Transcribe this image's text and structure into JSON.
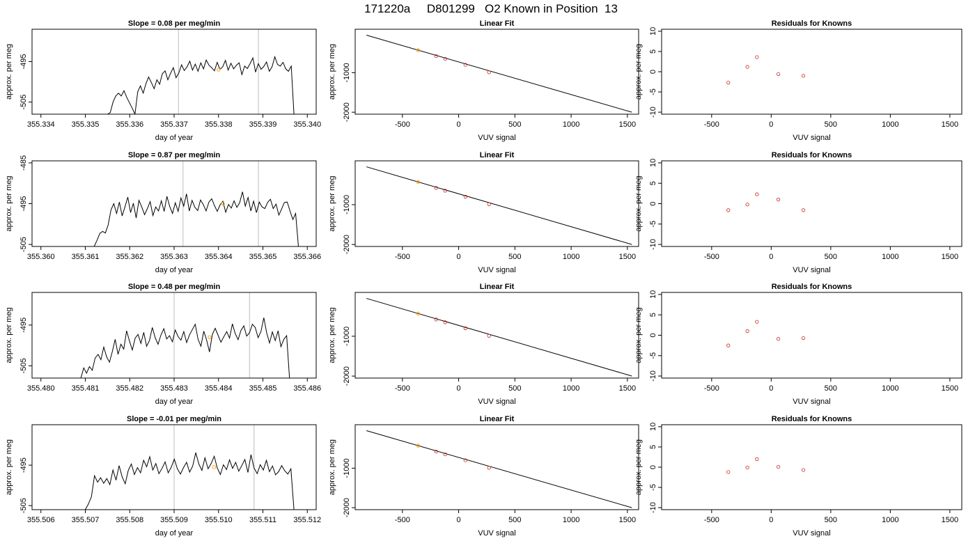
{
  "figure": {
    "title": "171220a     D801299   O2 Known in Position  13"
  },
  "colors": {
    "trace": "#000000",
    "vertical_markers": "#c8c8c8",
    "known_points": "#cc2020",
    "highlight_point": "#ff9900"
  },
  "chart_data": [
    {
      "type": "line",
      "title": "Slope =  0.08  per meg/min",
      "xlabel": "day of year",
      "ylabel": "approx. per meg",
      "xlim": [
        355.3338,
        355.3402
      ],
      "ylim": [
        -508,
        -487
      ],
      "xticks": [
        "355.334",
        "355.335",
        "355.336",
        "355.337",
        "355.338",
        "355.339",
        "355.340"
      ],
      "xtick_values": [
        355.334,
        355.335,
        355.336,
        355.337,
        355.338,
        355.339,
        355.34
      ],
      "yticks": [
        "-505",
        "-495"
      ],
      "ytick_values": [
        -505,
        -495
      ],
      "vlines": [
        355.3371,
        355.3389
      ],
      "highlight": {
        "x": 355.338,
        "y": -497
      },
      "trace": {
        "x_start": 355.3355,
        "x_end": 355.3397,
        "baseline": -496,
        "amplitude": 2.2,
        "rise": [
          -508,
          -502
        ],
        "fall": -508,
        "y": [
          -508,
          -507.6,
          -505,
          -503.5,
          -502.8,
          -503.5,
          -502.2,
          -503.8,
          -505.2,
          -506.5,
          -508,
          -502.5,
          -501,
          -502.8,
          -500.5,
          -498.8,
          -500.2,
          -501.7,
          -499.5,
          -500.6,
          -498,
          -497.3,
          -499.5,
          -497.9,
          -496.5,
          -499,
          -497.8,
          -495.8,
          -497.2,
          -496.3,
          -494.9,
          -497.1,
          -495.6,
          -497.4,
          -495.3,
          -496.8,
          -494.6,
          -495.9,
          -496.5,
          -497.3,
          -495.2,
          -496.9,
          -496.3,
          -494.7,
          -497.1,
          -495.4,
          -496.8,
          -495.9,
          -495.3,
          -498.2,
          -496.1,
          -496.7,
          -495.5,
          -494.1,
          -497.6,
          -495.5,
          -496.9,
          -496.2,
          -495.1,
          -497.4,
          -496.3,
          -493.8,
          -495.7,
          -496.1,
          -495.2,
          -496.8,
          -497.4,
          -496.1,
          -508
        ]
      }
    },
    {
      "type": "line",
      "title": "Linear Fit",
      "xlabel": "VUV signal",
      "ylabel": "approx. per meg",
      "xlim": [
        -920,
        1600
      ],
      "ylim": [
        -2050,
        100
      ],
      "xticks": [
        "-500",
        "0",
        "500",
        "1000",
        "1500"
      ],
      "xtick_values": [
        -500,
        0,
        500,
        1000,
        1500
      ],
      "yticks": [
        "-1000",
        "-2000"
      ],
      "ytick_values": [
        -1000,
        -2000
      ],
      "fit_line": {
        "x": [
          -820,
          1540
        ],
        "y": [
          -50,
          -2000
        ]
      },
      "points": {
        "x": [
          -360,
          -200,
          -120,
          60,
          270
        ],
        "y": [
          -430,
          -580,
          -650,
          -800,
          -990
        ]
      },
      "highlight_point_index": 0
    },
    {
      "type": "scatter",
      "title": "Residuals for Knowns",
      "xlabel": "VUV signal",
      "ylabel": "approx. per meg",
      "xlim": [
        -920,
        1600
      ],
      "ylim": [
        -10.5,
        10.5
      ],
      "xticks": [
        "-500",
        "0",
        "500",
        "1000",
        "1500"
      ],
      "xtick_values": [
        -500,
        0,
        500,
        1000,
        1500
      ],
      "yticks": [
        "-10",
        "-5",
        "0",
        "5",
        "10"
      ],
      "ytick_values": [
        -10,
        -5,
        0,
        5,
        10
      ],
      "points": {
        "x": [
          -360,
          -200,
          -120,
          60,
          270
        ],
        "y": [
          -2.7,
          1.2,
          3.6,
          -0.6,
          -1.0
        ]
      }
    },
    {
      "type": "line",
      "title": "Slope =  0.87  per meg/min",
      "xlabel": "day of year",
      "ylabel": "approx. per meg",
      "xlim": [
        355.3598,
        355.3662
      ],
      "ylim": [
        -505.5,
        -484.5
      ],
      "xticks": [
        "355.360",
        "355.361",
        "355.362",
        "355.363",
        "355.364",
        "355.365",
        "355.366"
      ],
      "xtick_values": [
        355.36,
        355.361,
        355.362,
        355.363,
        355.364,
        355.365,
        355.366
      ],
      "yticks": [
        "-505",
        "-495",
        "-485"
      ],
      "ytick_values": [
        -505,
        -495,
        -485
      ],
      "vlines": [
        355.3632,
        355.3649
      ],
      "highlight": {
        "x": 355.3641,
        "y": -495
      },
      "trace": {
        "x_start": 355.3612,
        "x_end": 355.3658,
        "baseline": -495,
        "amplitude": 2.0,
        "y": [
          -505.5,
          -504,
          -502.3,
          -501.8,
          -502.2,
          -500.2,
          -496.5,
          -495,
          -497.4,
          -494.6,
          -498,
          -495.8,
          -493.4,
          -497.2,
          -494.9,
          -498.5,
          -494.2,
          -495.8,
          -497.7,
          -496.2,
          -494.5,
          -497.9,
          -495.8,
          -496.8,
          -494.3,
          -496.9,
          -493.2,
          -495.7,
          -497.4,
          -494.8,
          -496.9,
          -493.6,
          -495.6,
          -492.6,
          -496.8,
          -494.2,
          -495.9,
          -496.7,
          -494.1,
          -495.2,
          -496.8,
          -494.6,
          -493.8,
          -495.5,
          -496.9,
          -495.3,
          -494.4,
          -497.1,
          -495.2,
          -496.1,
          -494.3,
          -495.9,
          -494.8,
          -492.1,
          -495.6,
          -493.5,
          -496.8,
          -494.4,
          -497.2,
          -494.6,
          -495.8,
          -496.2,
          -494.7,
          -493.9,
          -496.2,
          -495.1,
          -497.8,
          -496.3,
          -494.7,
          -494.6,
          -496.8,
          -498.9,
          -497.4,
          -505.5
        ]
      }
    },
    {
      "type": "line",
      "title": "Linear Fit",
      "xlabel": "VUV signal",
      "ylabel": "approx. per meg",
      "xlim": [
        -920,
        1600
      ],
      "ylim": [
        -2050,
        100
      ],
      "xticks": [
        "-500",
        "0",
        "500",
        "1000",
        "1500"
      ],
      "xtick_values": [
        -500,
        0,
        500,
        1000,
        1500
      ],
      "yticks": [
        "-1000",
        "-2000"
      ],
      "ytick_values": [
        -1000,
        -2000
      ],
      "fit_line": {
        "x": [
          -820,
          1540
        ],
        "y": [
          -50,
          -2000
        ]
      },
      "points": {
        "x": [
          -360,
          -200,
          -120,
          60,
          270
        ],
        "y": [
          -430,
          -580,
          -650,
          -800,
          -990
        ]
      },
      "highlight_point_index": 0
    },
    {
      "type": "scatter",
      "title": "Residuals for Knowns",
      "xlabel": "VUV signal",
      "ylabel": "approx. per meg",
      "xlim": [
        -920,
        1600
      ],
      "ylim": [
        -10.5,
        10.5
      ],
      "xticks": [
        "-500",
        "0",
        "500",
        "1000",
        "1500"
      ],
      "xtick_values": [
        -500,
        0,
        500,
        1000,
        1500
      ],
      "yticks": [
        "-10",
        "-5",
        "0",
        "5",
        "10"
      ],
      "ytick_values": [
        -10,
        -5,
        0,
        5,
        10
      ],
      "points": {
        "x": [
          -360,
          -200,
          -120,
          60,
          270
        ],
        "y": [
          -1.6,
          -0.2,
          2.3,
          1.0,
          -1.6
        ]
      }
    },
    {
      "type": "line",
      "title": "Slope =  0.48  per meg/min",
      "xlabel": "day of year",
      "ylabel": "approx. per meg",
      "xlim": [
        355.4798,
        355.4862
      ],
      "ylim": [
        -508,
        -487
      ],
      "xticks": [
        "355.480",
        "355.481",
        "355.482",
        "355.483",
        "355.484",
        "355.485",
        "355.486"
      ],
      "xtick_values": [
        355.48,
        355.481,
        355.482,
        355.483,
        355.484,
        355.485,
        355.486
      ],
      "yticks": [
        "-505",
        "-495"
      ],
      "ytick_values": [
        -505,
        -495
      ],
      "vlines": [
        355.483,
        355.4847
      ],
      "highlight": {
        "x": 355.4838,
        "y": -498
      },
      "trace": {
        "x_start": 355.4809,
        "x_end": 355.4856,
        "baseline": -497,
        "amplitude": 2.4,
        "y": [
          -508,
          -505.5,
          -506.8,
          -505.2,
          -506.1,
          -503.1,
          -502.2,
          -503.5,
          -500.4,
          -502.8,
          -504.1,
          -501.5,
          -498.5,
          -502.2,
          -499.7,
          -500.9,
          -496.4,
          -498.9,
          -501.1,
          -498.2,
          -497.3,
          -499.5,
          -496.8,
          -500.2,
          -498.8,
          -495.6,
          -498.1,
          -499.7,
          -497.5,
          -495.9,
          -498.4,
          -497.6,
          -499.1,
          -496.2,
          -497.8,
          -498.7,
          -496.6,
          -499.3,
          -497.4,
          -496.1,
          -494.8,
          -498.5,
          -500.2,
          -496.5,
          -498.7,
          -501.6,
          -497.3,
          -495.8,
          -497.5,
          -499.2,
          -497.9,
          -496.6,
          -498.2,
          -494.7,
          -497.1,
          -498.6,
          -496.3,
          -495.2,
          -497.7,
          -496.9,
          -494.8,
          -495.6,
          -498.1,
          -496.6,
          -493.2,
          -496.9,
          -499.4,
          -496.7,
          -498.8,
          -496.4,
          -500.3,
          -498.5,
          -497.6,
          -508
        ]
      }
    },
    {
      "type": "line",
      "title": "Linear Fit",
      "xlabel": "VUV signal",
      "ylabel": "approx. per meg",
      "xlim": [
        -920,
        1600
      ],
      "ylim": [
        -2050,
        100
      ],
      "xticks": [
        "-500",
        "0",
        "500",
        "1000",
        "1500"
      ],
      "xtick_values": [
        -500,
        0,
        500,
        1000,
        1500
      ],
      "yticks": [
        "-1000",
        "-2000"
      ],
      "ytick_values": [
        -1000,
        -2000
      ],
      "fit_line": {
        "x": [
          -820,
          1540
        ],
        "y": [
          -50,
          -2000
        ]
      },
      "points": {
        "x": [
          -360,
          -200,
          -120,
          60,
          270
        ],
        "y": [
          -430,
          -580,
          -650,
          -800,
          -990
        ]
      },
      "highlight_point_index": 0
    },
    {
      "type": "scatter",
      "title": "Residuals for Knowns",
      "xlabel": "VUV signal",
      "ylabel": "approx. per meg",
      "xlim": [
        -920,
        1600
      ],
      "ylim": [
        -10.5,
        10.5
      ],
      "xticks": [
        "-500",
        "0",
        "500",
        "1000",
        "1500"
      ],
      "xtick_values": [
        -500,
        0,
        500,
        1000,
        1500
      ],
      "yticks": [
        "-10",
        "-5",
        "0",
        "5",
        "10"
      ],
      "ytick_values": [
        -10,
        -5,
        0,
        5,
        10
      ],
      "points": {
        "x": [
          -360,
          -200,
          -120,
          60,
          270
        ],
        "y": [
          -2.5,
          1.0,
          3.3,
          -0.9,
          -0.7
        ]
      }
    },
    {
      "type": "line",
      "title": "Slope =  -0.01  per meg/min",
      "xlabel": "day of year",
      "ylabel": "approx. per meg",
      "xlim": [
        355.5058,
        355.5122
      ],
      "ylim": [
        -506,
        -485
      ],
      "xticks": [
        "355.506",
        "355.507",
        "355.508",
        "355.509",
        "355.510",
        "355.511",
        "355.512"
      ],
      "xtick_values": [
        355.506,
        355.507,
        355.508,
        355.509,
        355.51,
        355.511,
        355.512
      ],
      "yticks": [
        "-505",
        "-495"
      ],
      "ytick_values": [
        -505,
        -495
      ],
      "vlines": [
        355.509,
        355.5108
      ],
      "highlight": {
        "x": 355.5099,
        "y": -495.5
      },
      "trace": {
        "x_start": 355.507,
        "x_end": 355.5117,
        "baseline": -495.5,
        "amplitude": 1.6,
        "y": [
          -506,
          -504.6,
          -502.8,
          -497.6,
          -499.2,
          -498.1,
          -499.5,
          -498.3,
          -499.8,
          -496.2,
          -498.7,
          -495.1,
          -497.9,
          -499.6,
          -496.3,
          -494.7,
          -497.3,
          -495.6,
          -496.9,
          -493.8,
          -495.4,
          -492.9,
          -496.2,
          -494.6,
          -497.1,
          -495.8,
          -494.2,
          -496.9,
          -495.5,
          -493.5,
          -495.9,
          -497.2,
          -495.6,
          -494.3,
          -496.7,
          -495.2,
          -491.9,
          -494.7,
          -496.3,
          -493.2,
          -495.9,
          -494.6,
          -492.8,
          -495.7,
          -497.3,
          -494.9,
          -496.1,
          -493.7,
          -495.8,
          -494.3,
          -496.5,
          -495.1,
          -493.6,
          -496.8,
          -492.4,
          -495.7,
          -497.1,
          -494.9,
          -496.2,
          -493.8,
          -496.6,
          -495.2,
          -497.4,
          -496.6,
          -495.1,
          -496.4,
          -497.2,
          -495.9,
          -506
        ]
      }
    },
    {
      "type": "line",
      "title": "Linear Fit",
      "xlabel": "VUV signal",
      "ylabel": "approx. per meg",
      "xlim": [
        -920,
        1600
      ],
      "ylim": [
        -2050,
        100
      ],
      "xticks": [
        "-500",
        "0",
        "500",
        "1000",
        "1500"
      ],
      "xtick_values": [
        -500,
        0,
        500,
        1000,
        1500
      ],
      "yticks": [
        "-1000",
        "-2000"
      ],
      "ytick_values": [
        -1000,
        -2000
      ],
      "fit_line": {
        "x": [
          -820,
          1540
        ],
        "y": [
          -50,
          -2000
        ]
      },
      "points": {
        "x": [
          -360,
          -200,
          -120,
          60,
          270
        ],
        "y": [
          -430,
          -580,
          -650,
          -800,
          -990
        ]
      },
      "highlight_point_index": 0
    },
    {
      "type": "scatter",
      "title": "Residuals for Knowns",
      "xlabel": "VUV signal",
      "ylabel": "approx. per meg",
      "xlim": [
        -920,
        1600
      ],
      "ylim": [
        -10.5,
        10.5
      ],
      "xticks": [
        "-500",
        "0",
        "500",
        "1000",
        "1500"
      ],
      "xtick_values": [
        -500,
        0,
        500,
        1000,
        1500
      ],
      "yticks": [
        "-10",
        "-5",
        "0",
        "5",
        "10"
      ],
      "ytick_values": [
        -10,
        -5,
        0,
        5,
        10
      ],
      "points": {
        "x": [
          -360,
          -200,
          -120,
          60,
          270
        ],
        "y": [
          -1.2,
          -0.1,
          2.0,
          0.1,
          -0.7
        ]
      }
    }
  ]
}
